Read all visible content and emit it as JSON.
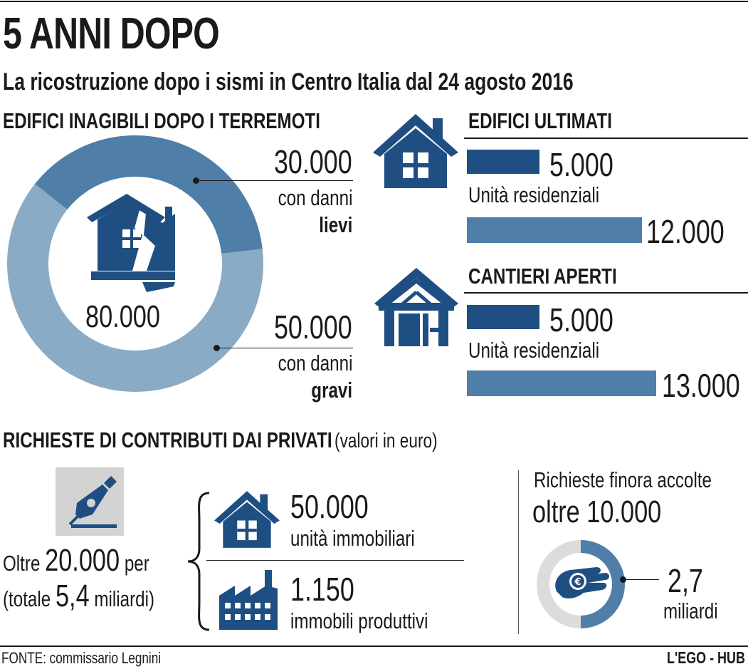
{
  "header": {
    "title": "5 ANNI DOPO",
    "subtitle": "La ricostruzione dopo i sismi in Centro Italia dal 24 agosto 2016"
  },
  "inagibili": {
    "heading": "EDIFICI INAGIBILI DOPO I TERREMOTI",
    "total": "80.000",
    "lievi": {
      "value": "30.000",
      "line1": "con danni",
      "line2": "lievi"
    },
    "gravi": {
      "value": "50.000",
      "line1": "con danni",
      "line2": "gravi"
    }
  },
  "ultimati": {
    "heading": "EDIFICI ULTIMATI",
    "bar1_value": "5.000",
    "label": "Unità residenziali",
    "bar2_value": "12.000"
  },
  "cantieri": {
    "heading": "CANTIERI APERTI",
    "bar1_value": "5.000",
    "label": "Unità residenziali",
    "bar2_value": "13.000"
  },
  "contributi": {
    "heading": "RICHIESTE DI CONTRIBUTI DAI PRIVATI",
    "heading_note": "(valori in euro)",
    "oltre_prefix": "Oltre",
    "oltre_value": "20.000",
    "oltre_suffix": "per",
    "totale_prefix": "(totale",
    "totale_value": "5,4",
    "totale_suffix": "miliardi)",
    "unita_value": "50.000",
    "unita_label": "unità immobiliari",
    "produttivi_value": "1.150",
    "produttivi_label": "immobili produttivi",
    "accolte_label": "Richieste finora accolte",
    "accolte_value": "oltre 10.000",
    "miliardi_value": "2,7",
    "miliardi_label": "miliardi"
  },
  "footer": {
    "source": "FONTE: commissario Legnini",
    "brand": "L'EGO - HUB"
  },
  "chart_data": [
    {
      "type": "pie",
      "title": "EDIFICI INAGIBILI DOPO I TERREMOTI",
      "total": 80000,
      "categories": [
        "con danni lievi",
        "con danni gravi"
      ],
      "values": [
        30000,
        50000
      ]
    },
    {
      "type": "bar",
      "title": "EDIFICI ULTIMATI",
      "values": [
        5000,
        12000
      ]
    },
    {
      "type": "bar",
      "title": "CANTIERI APERTI",
      "values": [
        5000,
        13000
      ]
    },
    {
      "type": "pie",
      "title": "Richieste finora accolte",
      "values": [
        2.7,
        5.4
      ]
    }
  ],
  "colors": {
    "dark_blue": "#1f4f82",
    "mid_blue": "#4f7ea8",
    "light_blue": "#8aabc6",
    "gray": "#dcdcdc",
    "icon_bg": "#d3d3d3"
  }
}
